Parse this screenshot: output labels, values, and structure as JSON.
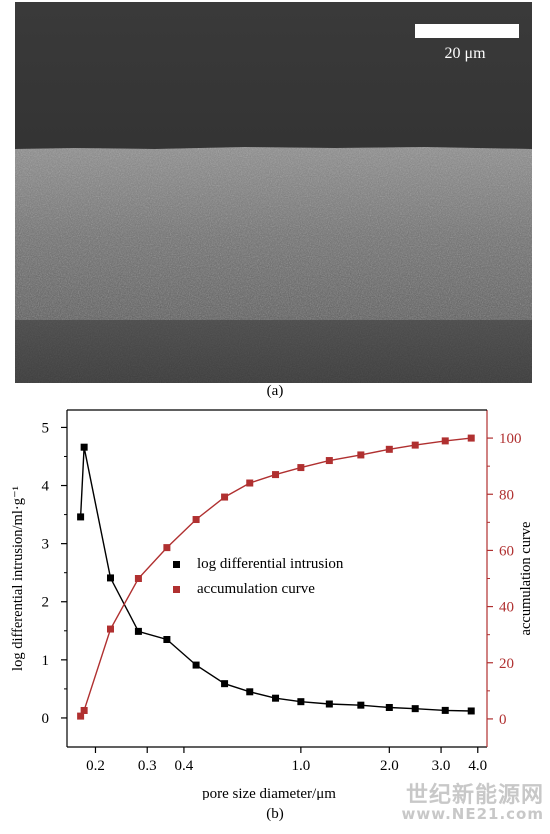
{
  "panel_a": {
    "scale_bar_label": "20 μm",
    "caption": "(a)"
  },
  "panel_b": {
    "caption": "(b)"
  },
  "watermark": {
    "text": "世纪新能源网",
    "url": "www.NE21.com"
  },
  "colors": {
    "series_black": "#000000",
    "series_red": "#b03030"
  },
  "chart_data": {
    "type": "line",
    "xlabel": "pore size diameter/μm",
    "ylabel_left": "log differential intrusion/ml·g⁻¹",
    "ylabel_right": "accumulation curve",
    "x_scale": "log",
    "xlim": [
      0.16,
      4.3
    ],
    "ylim_left": [
      -0.5,
      5.3
    ],
    "ylim_right": [
      -10,
      110
    ],
    "x_ticks": [
      0.2,
      0.3,
      0.4,
      1.0,
      2.0,
      3.0,
      4.0
    ],
    "x_tick_labels": [
      "0.2",
      "0.3",
      "0.4",
      "1.0",
      "2.0",
      "3.0",
      "4.0"
    ],
    "y_left_ticks": [
      0,
      1,
      2,
      3,
      4,
      5
    ],
    "y_right_ticks": [
      0,
      20,
      40,
      60,
      80,
      100
    ],
    "legend_position": "center",
    "grid": false,
    "series": [
      {
        "name": "log differential intrusion",
        "axis": "left",
        "color": "#000000",
        "marker": "square",
        "x": [
          0.178,
          0.183,
          0.225,
          0.28,
          0.35,
          0.44,
          0.55,
          0.67,
          0.82,
          1.0,
          1.25,
          1.6,
          2.0,
          2.45,
          3.1,
          3.8
        ],
        "y": [
          3.46,
          4.66,
          2.41,
          1.49,
          1.35,
          0.91,
          0.59,
          0.45,
          0.34,
          0.28,
          0.24,
          0.22,
          0.18,
          0.16,
          0.13,
          0.12
        ]
      },
      {
        "name": "accumulation curve",
        "axis": "right",
        "color": "#b03030",
        "marker": "square",
        "x": [
          0.178,
          0.183,
          0.225,
          0.28,
          0.35,
          0.44,
          0.55,
          0.67,
          0.82,
          1.0,
          1.25,
          1.6,
          2.0,
          2.45,
          3.1,
          3.8
        ],
        "y": [
          1,
          3,
          32,
          50,
          61,
          71,
          79,
          84,
          87,
          89.5,
          92,
          94,
          96,
          97.5,
          99,
          100
        ]
      }
    ]
  }
}
